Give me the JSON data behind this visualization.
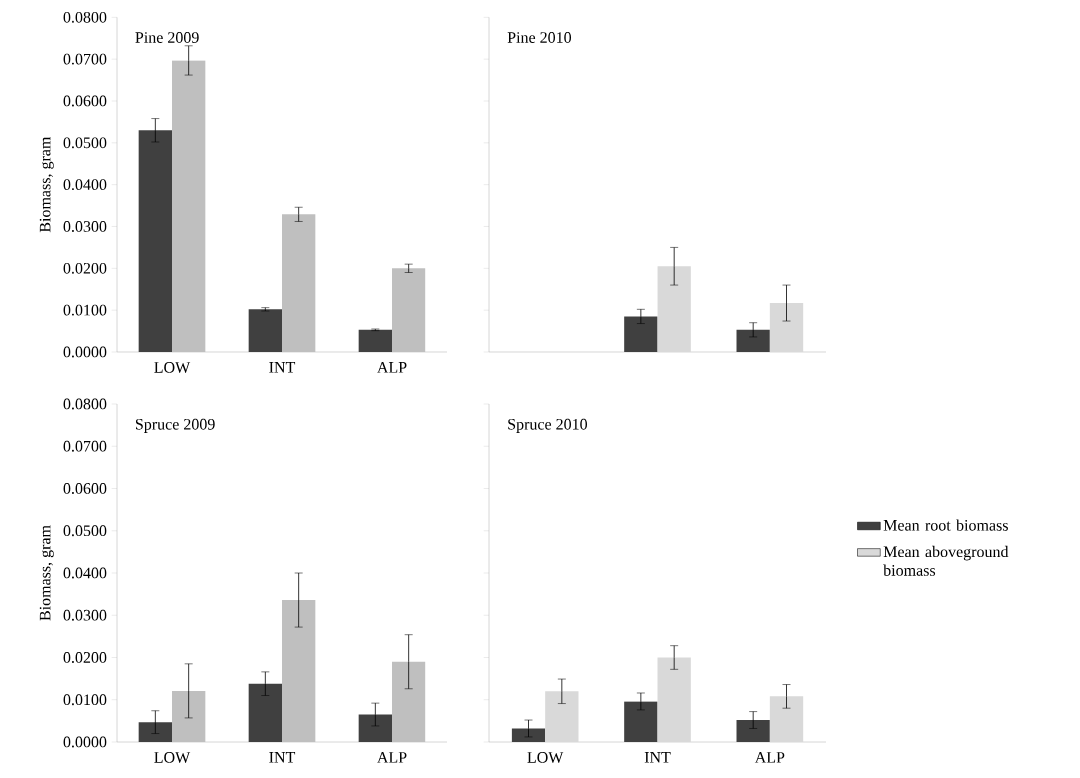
{
  "chart_data": [
    {
      "type": "bar",
      "title": "Pine 2009",
      "ylabel": "Biomass, gram",
      "categories": [
        "LOW",
        "INT",
        "ALP"
      ],
      "ylim": [
        0,
        0.08
      ],
      "yticks": [
        {
          "value": 0,
          "label": "0.0000"
        },
        {
          "value": 0.01,
          "label": "0.0100"
        },
        {
          "value": 0.02,
          "label": "0.0200"
        },
        {
          "value": 0.03,
          "label": "0.0300"
        },
        {
          "value": 0.04,
          "label": "0.0400"
        },
        {
          "value": 0.05,
          "label": "0.0500"
        },
        {
          "value": 0.06,
          "label": "0.0600"
        },
        {
          "value": 0.07,
          "label": "0.0700"
        },
        {
          "value": 0.08,
          "label": "0.0800"
        }
      ],
      "series": [
        {
          "color": "#404040",
          "values": [
            0.053,
            0.0102,
            0.0053
          ],
          "errors": [
            0.0028,
            0.0004,
            0.0002
          ]
        },
        {
          "color": "#bfbfbf",
          "values": [
            0.0697,
            0.0329,
            0.02
          ],
          "errors": [
            0.0035,
            0.0017,
            0.001
          ]
        }
      ]
    },
    {
      "type": "bar",
      "title": "Pine 2010",
      "categories": [
        "LOW",
        "INT",
        "ALP"
      ],
      "tick_labels": false,
      "ylim": [
        0,
        0.08
      ],
      "yticks": [
        {
          "value": 0,
          "label": null
        },
        {
          "value": 0.01,
          "label": null
        },
        {
          "value": 0.02,
          "label": null
        },
        {
          "value": 0.03,
          "label": null
        },
        {
          "value": 0.04,
          "label": null
        },
        {
          "value": 0.05,
          "label": null
        },
        {
          "value": 0.06,
          "label": null
        },
        {
          "value": 0.07,
          "label": null
        },
        {
          "value": 0.08,
          "label": null
        }
      ],
      "series": [
        {
          "color": "#404040",
          "values": [
            null,
            0.0085,
            0.0053
          ],
          "errors": [
            null,
            0.0017,
            0.0017
          ]
        },
        {
          "color": "#d9d9d9",
          "values": [
            null,
            0.0205,
            0.0117
          ],
          "errors": [
            null,
            0.0045,
            0.0043
          ]
        }
      ]
    },
    {
      "type": "bar",
      "title": "Spruce 2009",
      "ylabel": "Biomass, gram",
      "categories": [
        "LOW",
        "INT",
        "ALP"
      ],
      "ylim": [
        0,
        0.08
      ],
      "yticks": [
        {
          "value": 0,
          "label": "0.0000"
        },
        {
          "value": 0.01,
          "label": "0.0100"
        },
        {
          "value": 0.02,
          "label": "0.0200"
        },
        {
          "value": 0.03,
          "label": "0.0300"
        },
        {
          "value": 0.04,
          "label": "0.0400"
        },
        {
          "value": 0.05,
          "label": "0.0500"
        },
        {
          "value": 0.06,
          "label": "0.0600"
        },
        {
          "value": 0.07,
          "label": "0.0700"
        },
        {
          "value": 0.08,
          "label": "0.0800"
        }
      ],
      "series": [
        {
          "color": "#404040",
          "values": [
            0.0047,
            0.0138,
            0.0065
          ],
          "errors": [
            0.0027,
            0.0028,
            0.0027
          ]
        },
        {
          "color": "#bfbfbf",
          "values": [
            0.0121,
            0.0336,
            0.019
          ],
          "errors": [
            0.0064,
            0.0064,
            0.0064
          ]
        }
      ]
    },
    {
      "type": "bar",
      "title": "Spruce 2010",
      "categories": [
        "LOW",
        "INT",
        "ALP"
      ],
      "tick_labels": "x",
      "legend": "right",
      "ylim": [
        0,
        0.08
      ],
      "yticks": [
        {
          "value": 0,
          "label": null
        },
        {
          "value": 0.01,
          "label": null
        },
        {
          "value": 0.02,
          "label": null
        },
        {
          "value": 0.03,
          "label": null
        },
        {
          "value": 0.04,
          "label": null
        },
        {
          "value": 0.05,
          "label": null
        },
        {
          "value": 0.06,
          "label": null
        },
        {
          "value": 0.07,
          "label": null
        },
        {
          "value": 0.08,
          "label": null
        }
      ],
      "series": [
        {
          "name": "Mean root biomass",
          "color": "#404040",
          "values": [
            0.0032,
            0.0096,
            0.0052
          ],
          "errors": [
            0.002,
            0.002,
            0.002
          ]
        },
        {
          "name": "Mean aboveground biomass",
          "color": "#d9d9d9",
          "values": [
            0.012,
            0.02,
            0.0108
          ],
          "errors": [
            0.0029,
            0.0028,
            0.0028
          ]
        }
      ]
    }
  ]
}
